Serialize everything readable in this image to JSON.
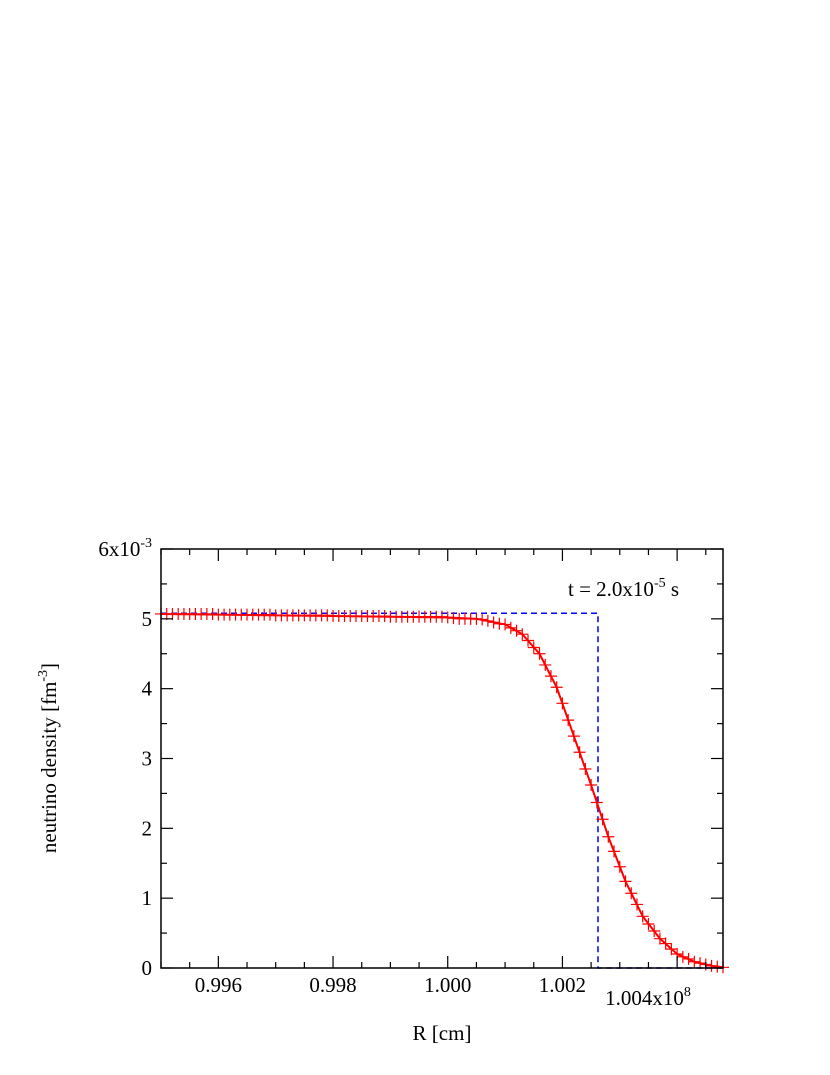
{
  "chart_data": {
    "type": "line",
    "annotation": {
      "prefix": "t = 2.0x10",
      "exp": "-5",
      "suffix": " s"
    },
    "xlabel": "R [cm]",
    "ylabel": {
      "prefix": "neutrino density [fm",
      "exp": "-3",
      "suffix": "]"
    },
    "xlim": [
      0.995,
      1.0048
    ],
    "ylim": [
      0,
      6
    ],
    "x_ticks": [
      {
        "value": 0.996,
        "label": "0.996"
      },
      {
        "value": 0.998,
        "label": "0.998"
      },
      {
        "value": 1.0,
        "label": "1.000"
      },
      {
        "value": 1.002,
        "label": "1.002"
      },
      {
        "value": 1.004,
        "label": "1.004x10",
        "exp": "8"
      }
    ],
    "y_ticks": [
      {
        "value": 0,
        "label": "0"
      },
      {
        "value": 1,
        "label": "1"
      },
      {
        "value": 2,
        "label": "2"
      },
      {
        "value": 3,
        "label": "3"
      },
      {
        "value": 4,
        "label": "4"
      },
      {
        "value": 5,
        "label": "5"
      },
      {
        "value": 6,
        "label": "6x10",
        "exp": "-3"
      }
    ],
    "series": [
      {
        "style": "dashed",
        "color": "#0000ff",
        "x": [
          0.995,
          1.00262,
          1.00262,
          1.0048
        ],
        "y": [
          5.08,
          5.08,
          0,
          0
        ]
      },
      {
        "style": "solid",
        "color": "#ff0000",
        "x": [
          0.995,
          0.996,
          0.997,
          0.998,
          0.999,
          1.0,
          1.0005,
          1.001,
          1.0013,
          1.0016,
          1.0019,
          1.0022,
          1.0025,
          1.0028,
          1.0031,
          1.0034,
          1.0037,
          1.004,
          1.0043,
          1.0046,
          1.0048
        ],
        "y": [
          5.07,
          5.06,
          5.05,
          5.04,
          5.03,
          5.02,
          5.0,
          4.92,
          4.78,
          4.5,
          4.02,
          3.32,
          2.62,
          1.88,
          1.24,
          0.74,
          0.42,
          0.2,
          0.09,
          0.03,
          0.01
        ]
      },
      {
        "style": "markers",
        "marker": "plus",
        "color": "#ff0000",
        "x": [
          0.995,
          0.9951,
          0.9952,
          0.9953,
          0.9954,
          0.9955,
          0.9956,
          0.9957,
          0.9958,
          0.9959,
          0.996,
          0.9961,
          0.9962,
          0.9963,
          0.9964,
          0.9965,
          0.9966,
          0.9967,
          0.9968,
          0.9969,
          0.997,
          0.9971,
          0.9972,
          0.9973,
          0.9974,
          0.9975,
          0.9976,
          0.9977,
          0.9978,
          0.9979,
          0.998,
          0.9981,
          0.9982,
          0.9983,
          0.9984,
          0.9985,
          0.9986,
          0.9987,
          0.9988,
          0.9989,
          0.999,
          0.9991,
          0.9992,
          0.9993,
          0.9994,
          0.9995,
          0.9996,
          0.9997,
          0.9998,
          0.9999,
          1.0,
          1.0001,
          1.0002,
          1.0003,
          1.0004,
          1.0005,
          1.0006,
          1.0007,
          1.0008,
          1.0009,
          1.001,
          1.0011,
          1.0012,
          1.0013,
          1.0014,
          1.0015,
          1.0016,
          1.0017,
          1.0018,
          1.0019,
          1.002,
          1.0021,
          1.0022,
          1.0023,
          1.0024,
          1.0025,
          1.0026,
          1.0027,
          1.0028,
          1.0029,
          1.003,
          1.0031,
          1.0032,
          1.0033,
          1.0034,
          1.0035,
          1.0036,
          1.0037,
          1.0038,
          1.0039,
          1.004,
          1.0041,
          1.0042,
          1.0043,
          1.0044,
          1.0045,
          1.0046,
          1.0047,
          1.0048
        ],
        "y": [
          5.07,
          5.07,
          5.07,
          5.07,
          5.07,
          5.07,
          5.07,
          5.07,
          5.07,
          5.07,
          5.06,
          5.06,
          5.06,
          5.06,
          5.06,
          5.06,
          5.06,
          5.06,
          5.06,
          5.06,
          5.05,
          5.05,
          5.05,
          5.05,
          5.05,
          5.05,
          5.05,
          5.05,
          5.05,
          5.05,
          5.04,
          5.04,
          5.04,
          5.04,
          5.04,
          5.04,
          5.04,
          5.04,
          5.04,
          5.04,
          5.03,
          5.03,
          5.03,
          5.03,
          5.03,
          5.03,
          5.03,
          5.03,
          5.03,
          5.03,
          5.02,
          5.01,
          5.0,
          5.0,
          5.0,
          5.0,
          4.99,
          4.97,
          4.95,
          4.93,
          4.92,
          4.87,
          4.83,
          4.78,
          4.69,
          4.59,
          4.5,
          4.34,
          4.18,
          4.02,
          3.79,
          3.55,
          3.32,
          3.09,
          2.85,
          2.62,
          2.37,
          2.13,
          1.88,
          1.67,
          1.45,
          1.24,
          1.07,
          0.91,
          0.74,
          0.63,
          0.53,
          0.42,
          0.35,
          0.27,
          0.2,
          0.16,
          0.13,
          0.09,
          0.07,
          0.05,
          0.03,
          0.02,
          0.01
        ]
      }
    ],
    "grid": false,
    "legend": "none"
  }
}
